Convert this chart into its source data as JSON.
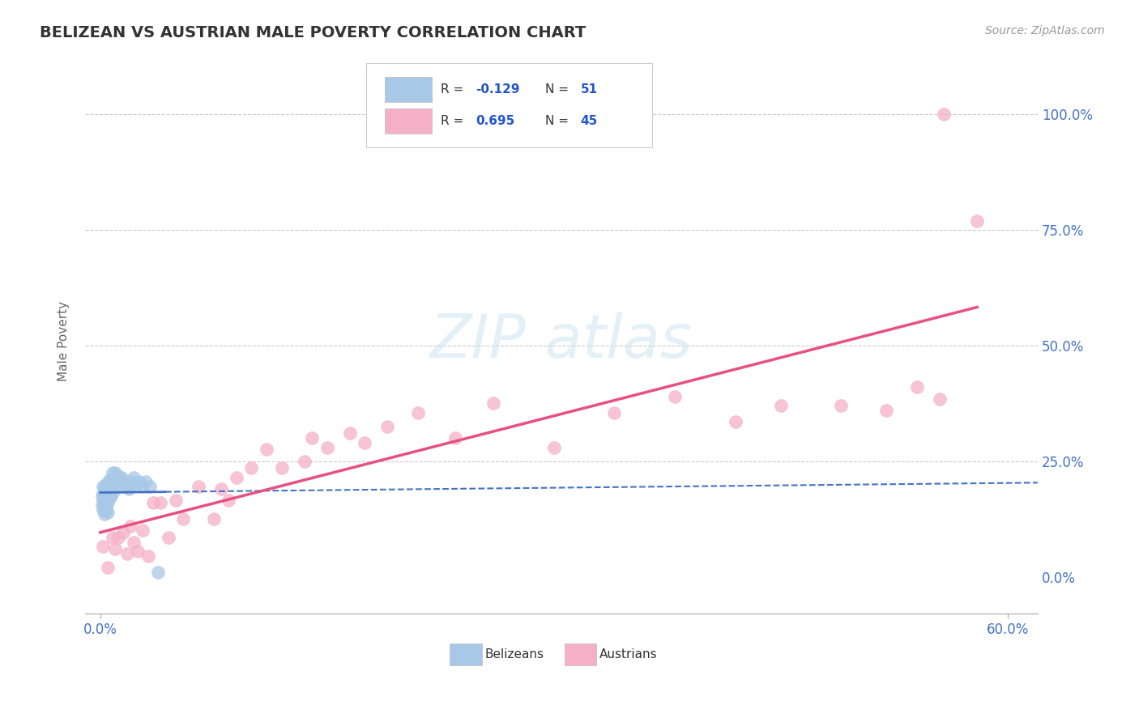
{
  "title": "BELIZEAN VS AUSTRIAN MALE POVERTY CORRELATION CHART",
  "source_text": "Source: ZipAtlas.com",
  "ylabel": "Male Poverty",
  "xlim": [
    -0.01,
    0.62
  ],
  "ylim": [
    -0.08,
    1.1
  ],
  "r_belizean": -0.129,
  "n_belizean": 51,
  "r_austrian": 0.695,
  "n_austrian": 45,
  "belizean_color": "#a8c8e8",
  "austrian_color": "#f5b0c8",
  "belizean_line_color": "#4472c4",
  "austrian_line_color": "#e85080",
  "legend_label_1": "Belizeans",
  "legend_label_2": "Austrians",
  "belizean_x": [
    0.001,
    0.001,
    0.002,
    0.002,
    0.002,
    0.002,
    0.003,
    0.003,
    0.003,
    0.003,
    0.003,
    0.003,
    0.004,
    0.004,
    0.004,
    0.004,
    0.004,
    0.005,
    0.005,
    0.005,
    0.005,
    0.006,
    0.006,
    0.006,
    0.007,
    0.007,
    0.007,
    0.008,
    0.008,
    0.009,
    0.009,
    0.01,
    0.01,
    0.011,
    0.011,
    0.012,
    0.013,
    0.013,
    0.014,
    0.015,
    0.016,
    0.018,
    0.019,
    0.02,
    0.022,
    0.024,
    0.026,
    0.028,
    0.03,
    0.033,
    0.038
  ],
  "belizean_y": [
    0.175,
    0.155,
    0.195,
    0.165,
    0.18,
    0.145,
    0.175,
    0.19,
    0.16,
    0.155,
    0.145,
    0.135,
    0.175,
    0.2,
    0.165,
    0.155,
    0.145,
    0.19,
    0.175,
    0.16,
    0.14,
    0.21,
    0.185,
    0.17,
    0.21,
    0.19,
    0.175,
    0.225,
    0.195,
    0.205,
    0.185,
    0.225,
    0.195,
    0.22,
    0.2,
    0.205,
    0.215,
    0.195,
    0.215,
    0.2,
    0.195,
    0.195,
    0.19,
    0.205,
    0.215,
    0.2,
    0.205,
    0.195,
    0.205,
    0.195,
    0.01
  ],
  "austrian_x": [
    0.002,
    0.005,
    0.008,
    0.01,
    0.012,
    0.015,
    0.018,
    0.02,
    0.022,
    0.025,
    0.028,
    0.032,
    0.035,
    0.04,
    0.045,
    0.05,
    0.055,
    0.065,
    0.075,
    0.08,
    0.085,
    0.09,
    0.1,
    0.11,
    0.12,
    0.135,
    0.14,
    0.15,
    0.165,
    0.175,
    0.19,
    0.21,
    0.235,
    0.26,
    0.3,
    0.34,
    0.38,
    0.42,
    0.45,
    0.49,
    0.52,
    0.54,
    0.555,
    0.558,
    0.58
  ],
  "austrian_y": [
    0.065,
    0.02,
    0.085,
    0.06,
    0.085,
    0.095,
    0.05,
    0.11,
    0.075,
    0.055,
    0.1,
    0.045,
    0.16,
    0.16,
    0.085,
    0.165,
    0.125,
    0.195,
    0.125,
    0.19,
    0.165,
    0.215,
    0.235,
    0.275,
    0.235,
    0.25,
    0.3,
    0.28,
    0.31,
    0.29,
    0.325,
    0.355,
    0.3,
    0.375,
    0.28,
    0.355,
    0.39,
    0.335,
    0.37,
    0.37,
    0.36,
    0.41,
    0.385,
    1.0,
    0.77
  ]
}
